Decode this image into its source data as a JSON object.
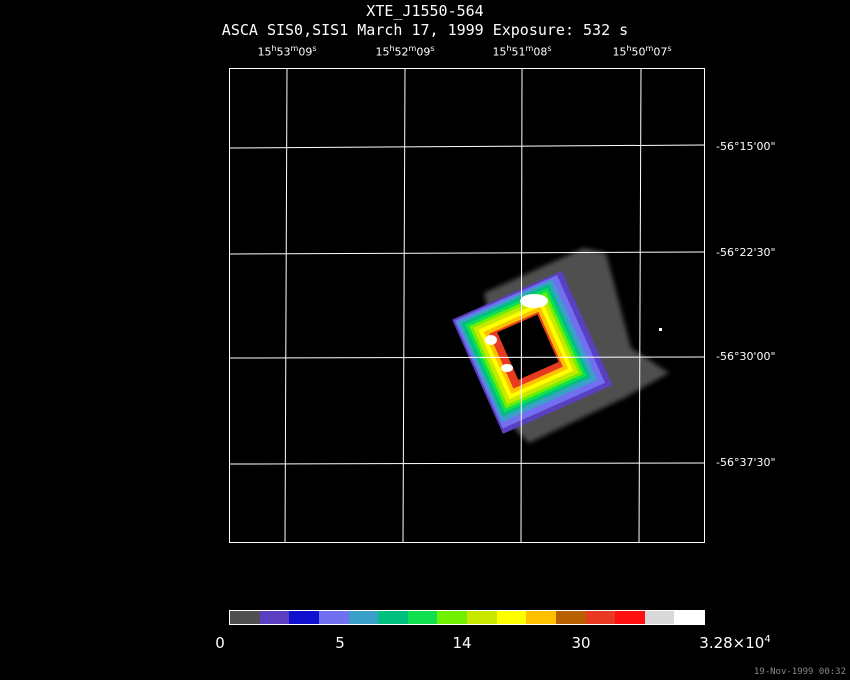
{
  "title": "XTE_J1550-564",
  "subtitle": "ASCA SIS0,SIS1 March 17, 1999 Exposure: 532 s",
  "ra_labels": [
    {
      "h": "15",
      "m": "53",
      "s": "09"
    },
    {
      "h": "15",
      "m": "52",
      "s": "09"
    },
    {
      "h": "15",
      "m": "51",
      "s": "08"
    },
    {
      "h": "15",
      "m": "50",
      "s": "07"
    }
  ],
  "dec_labels": [
    "-56°15'00\"",
    "-56°22'30\"",
    "-56°30'00\"",
    "-56°37'30\""
  ],
  "colorbar": {
    "colors": [
      "#505050",
      "#5a3fc0",
      "#1010d0",
      "#7070f0",
      "#3aa0c8",
      "#00c080",
      "#10e050",
      "#70f000",
      "#c8e800",
      "#ffff00",
      "#ffc000",
      "#b86000",
      "#e83a20",
      "#ff1010",
      "#d8d8d8",
      "#ffffff"
    ],
    "tick_labels": [
      "0",
      "5",
      "14",
      "30",
      "3.28×10"
    ],
    "max_exponent": "4"
  },
  "timestamp": "19-Nov-1999 00:32"
}
